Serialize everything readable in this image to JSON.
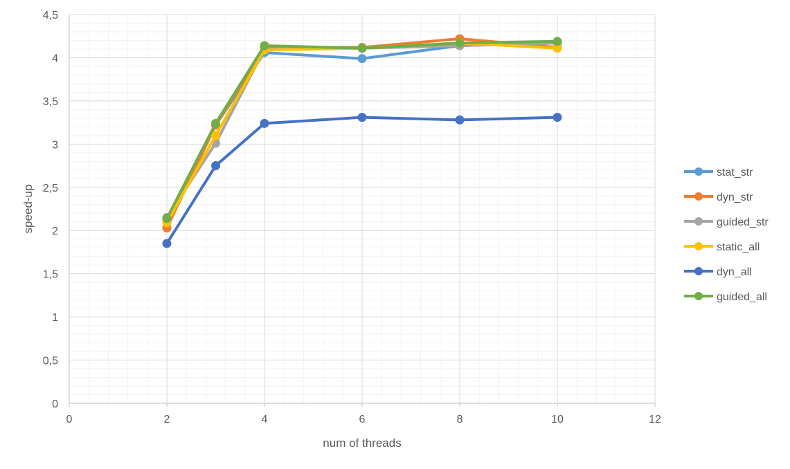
{
  "chart_data": {
    "type": "scatter",
    "mode": "lines+markers",
    "title": "",
    "xlabel": "num of threads",
    "ylabel": "speed-up",
    "xlim": [
      0,
      12
    ],
    "ylim": [
      0,
      4.5
    ],
    "x_major_ticks": [
      "0",
      "2",
      "4",
      "6",
      "8",
      "10",
      "12"
    ],
    "y_major_ticks": [
      "0",
      "0,5",
      "1",
      "1,5",
      "2",
      "2,5",
      "3",
      "3,5",
      "4",
      "4,5"
    ],
    "grid": "on (major and minor)",
    "legend_position": "right",
    "series": [
      {
        "name": "stat_str",
        "color": "#5B9BD5",
        "x": [
          2,
          3,
          4,
          6,
          8,
          10
        ],
        "y": [
          2.13,
          3.22,
          4.06,
          3.99,
          4.14,
          4.17
        ]
      },
      {
        "name": "dyn_str",
        "color": "#ED7D31",
        "x": [
          2,
          3,
          4,
          6,
          8,
          10
        ],
        "y": [
          2.03,
          3.22,
          4.12,
          4.12,
          4.22,
          4.12
        ]
      },
      {
        "name": "guided_str",
        "color": "#A5A5A5",
        "x": [
          2,
          3,
          4,
          6,
          8,
          10
        ],
        "y": [
          2.15,
          3.01,
          4.1,
          4.11,
          4.14,
          4.17
        ]
      },
      {
        "name": "static_all",
        "color": "#FFC000",
        "x": [
          2,
          3,
          4,
          6,
          8,
          10
        ],
        "y": [
          2.09,
          3.1,
          4.09,
          4.11,
          4.17,
          4.11
        ]
      },
      {
        "name": "dyn_all",
        "color": "#4472C4",
        "x": [
          2,
          3,
          4,
          6,
          8,
          10
        ],
        "y": [
          1.85,
          2.75,
          3.24,
          3.31,
          3.28,
          3.31
        ]
      },
      {
        "name": "guided_all",
        "color": "#70AD47",
        "x": [
          2,
          3,
          4,
          6,
          8,
          10
        ],
        "y": [
          2.14,
          3.24,
          4.14,
          4.11,
          4.17,
          4.19
        ]
      }
    ]
  }
}
